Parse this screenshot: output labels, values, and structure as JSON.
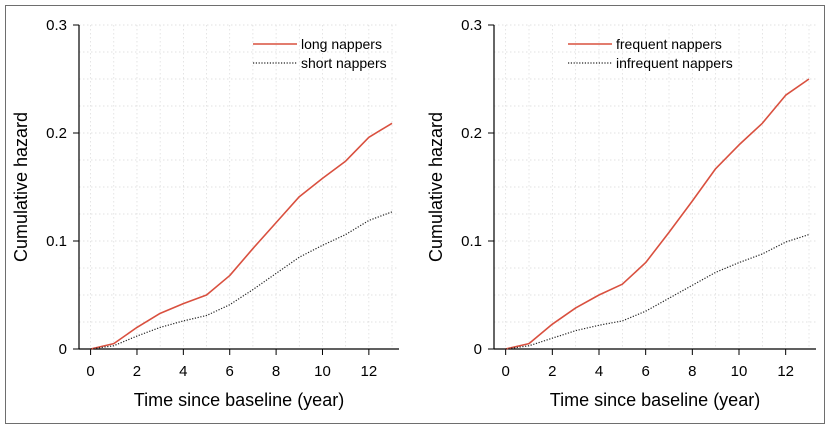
{
  "chart_data": [
    {
      "type": "line",
      "xlabel": "Time since baseline (year)",
      "ylabel": "Cumulative hazard",
      "xlim": [
        -0.5,
        13.3
      ],
      "ylim": [
        0,
        0.3
      ],
      "xticks": [
        0,
        2,
        4,
        6,
        8,
        10,
        12
      ],
      "yticks": [
        0,
        0.1,
        0.2,
        0.3
      ],
      "ytick_labels": [
        "0",
        "0.1",
        "0.2",
        "0.3"
      ],
      "grid": true,
      "legend_position": "top-right",
      "x": [
        0,
        1,
        2,
        3,
        4,
        5,
        6,
        7,
        8,
        9,
        10,
        11,
        12,
        13
      ],
      "series": [
        {
          "name": "long nappers",
          "color": "#d9503f",
          "style": "solid",
          "values": [
            0,
            0.005,
            0.02,
            0.033,
            0.042,
            0.05,
            0.068,
            0.093,
            0.117,
            0.141,
            0.158,
            0.174,
            0.196,
            0.209
          ]
        },
        {
          "name": "short nappers",
          "color": "#222222",
          "style": "dotted",
          "values": [
            0,
            0.003,
            0.012,
            0.02,
            0.026,
            0.031,
            0.041,
            0.055,
            0.07,
            0.085,
            0.096,
            0.106,
            0.119,
            0.127
          ]
        }
      ]
    },
    {
      "type": "line",
      "xlabel": "Time since baseline (year)",
      "ylabel": "Cumulative hazard",
      "xlim": [
        -0.5,
        13.3
      ],
      "ylim": [
        0,
        0.3
      ],
      "xticks": [
        0,
        2,
        4,
        6,
        8,
        10,
        12
      ],
      "yticks": [
        0,
        0.1,
        0.2,
        0.3
      ],
      "ytick_labels": [
        "0",
        "0.1",
        "0.2",
        "0.3"
      ],
      "grid": true,
      "legend_position": "top-right",
      "x": [
        0,
        1,
        2,
        3,
        4,
        5,
        6,
        7,
        8,
        9,
        10,
        11,
        12,
        13
      ],
      "series": [
        {
          "name": "frequent nappers",
          "color": "#d9503f",
          "style": "solid",
          "values": [
            0,
            0.005,
            0.023,
            0.038,
            0.05,
            0.06,
            0.08,
            0.108,
            0.137,
            0.167,
            0.189,
            0.209,
            0.235,
            0.25
          ]
        },
        {
          "name": "infrequent nappers",
          "color": "#222222",
          "style": "dotted",
          "values": [
            0,
            0.003,
            0.01,
            0.017,
            0.022,
            0.026,
            0.035,
            0.047,
            0.059,
            0.071,
            0.08,
            0.088,
            0.099,
            0.106
          ]
        }
      ]
    }
  ]
}
